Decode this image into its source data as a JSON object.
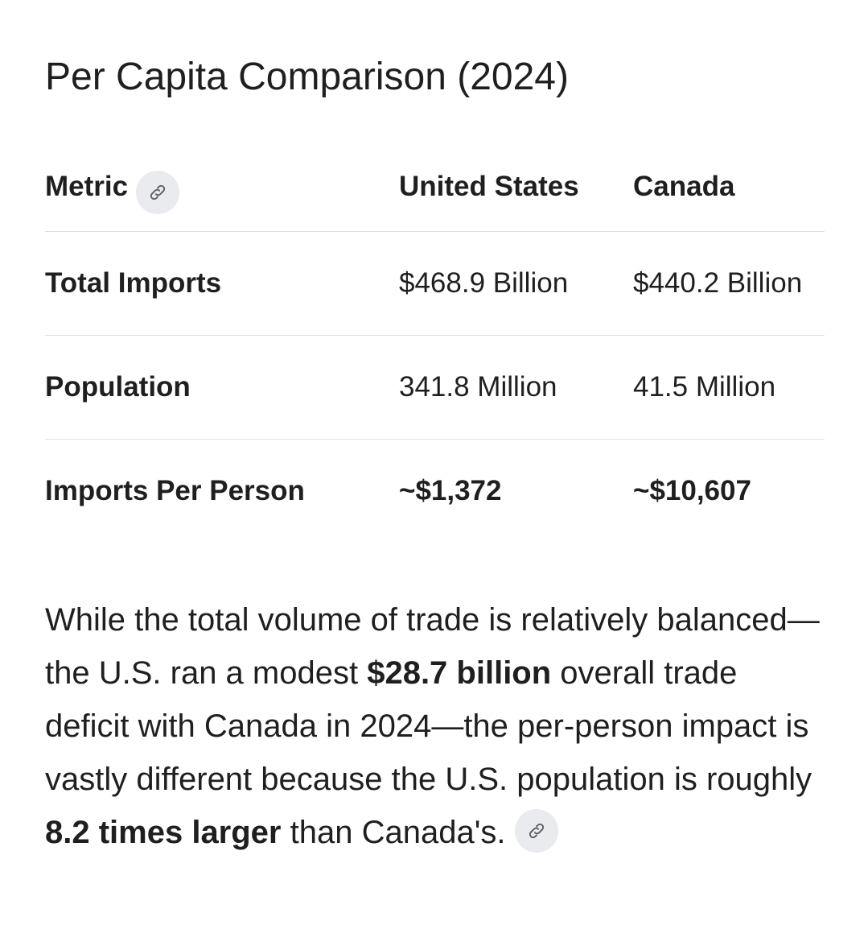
{
  "title": "Per Capita Comparison (2024)",
  "table": {
    "headers": {
      "metric": "Metric",
      "us": "United States",
      "canada": "Canada"
    },
    "rows": [
      {
        "metric": "Total Imports",
        "us": "$468.9 Billion",
        "canada": "$440.2 Billion"
      },
      {
        "metric": "Population",
        "us": "341.8 Million",
        "canada": "41.5 Million"
      },
      {
        "metric": "Imports Per Person",
        "us": "~$1,372",
        "canada": "~$10,607"
      }
    ]
  },
  "paragraph": {
    "part1": "While the total volume of trade is relatively balanced—the U.S. ran a modest ",
    "bold1": "$28.7 billion",
    "part2": " overall trade deficit with Canada in 2024—the per-person impact is vastly different because the U.S. population is roughly ",
    "bold2": "8.2 times larger",
    "part3": " than Canada's."
  },
  "icons": {
    "source_link": "link-icon"
  },
  "colors": {
    "text": "#1f1f1f",
    "divider": "#e0e0e0",
    "chip_background": "#e9ebee",
    "chip_icon": "#5f6368"
  }
}
